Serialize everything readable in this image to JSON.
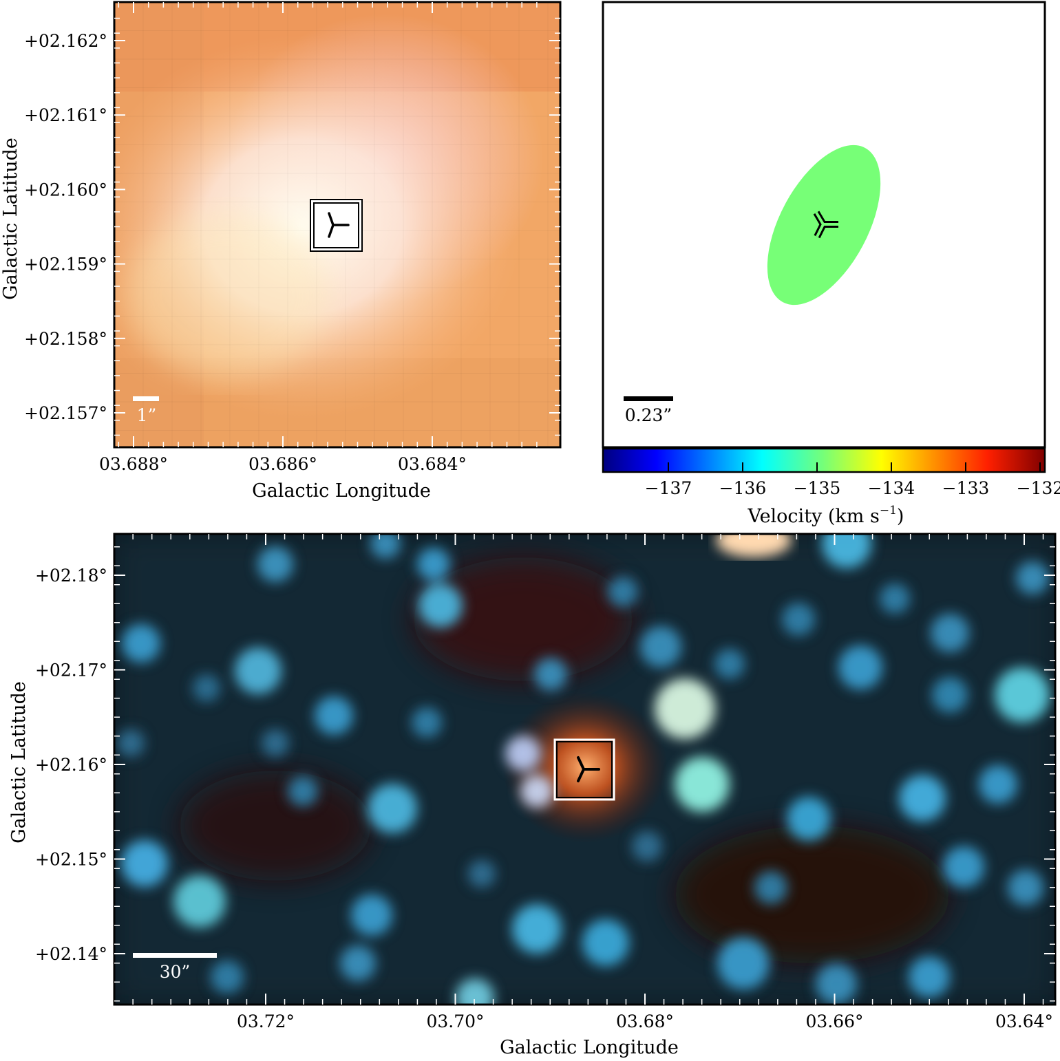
{
  "panels": {
    "top_left": {
      "ylabel": "Galactic Latitude",
      "xlabel": "Galactic Longitude",
      "yticks": [
        {
          "label": "+02.162°",
          "value": 2.162
        },
        {
          "label": "+02.161°",
          "value": 2.161
        },
        {
          "label": "+02.160°",
          "value": 2.16
        },
        {
          "label": "+02.159°",
          "value": 2.159
        },
        {
          "label": "+02.158°",
          "value": 2.158
        },
        {
          "label": "+02.157°",
          "value": 2.157
        }
      ],
      "xticks": [
        {
          "label": "03.688°",
          "value": 3.688
        },
        {
          "label": "03.686°",
          "value": 3.686
        },
        {
          "label": "03.684°",
          "value": 3.684
        }
      ],
      "scalebar_label": "1”"
    },
    "top_right": {
      "scalebar_label": "0.23”",
      "ellipse_color": "#77ff77",
      "colorbar": {
        "label": "Velocity (km s",
        "label_sup": "−1",
        "label_close": ")",
        "ticks": [
          {
            "label": "−137",
            "value": -137
          },
          {
            "label": "−136",
            "value": -136
          },
          {
            "label": "−135",
            "value": -135
          },
          {
            "label": "−134",
            "value": -134
          },
          {
            "label": "−133",
            "value": -133
          },
          {
            "label": "−132",
            "value": -132
          }
        ]
      }
    },
    "bottom": {
      "ylabel": "Galactic Latitude",
      "xlabel": "Galactic Longitude",
      "yticks": [
        {
          "label": "+02.18°",
          "value": 2.18
        },
        {
          "label": "+02.17°",
          "value": 2.17
        },
        {
          "label": "+02.16°",
          "value": 2.16
        },
        {
          "label": "+02.15°",
          "value": 2.15
        },
        {
          "label": "+02.14°",
          "value": 2.14
        }
      ],
      "xticks": [
        {
          "label": "03.72°",
          "value": 3.72
        },
        {
          "label": "03.70°",
          "value": 3.7
        },
        {
          "label": "03.68°",
          "value": 3.68
        },
        {
          "label": "03.66°",
          "value": 3.66
        },
        {
          "label": "03.64°",
          "value": 3.64
        }
      ],
      "scalebar_label": "30”"
    }
  }
}
